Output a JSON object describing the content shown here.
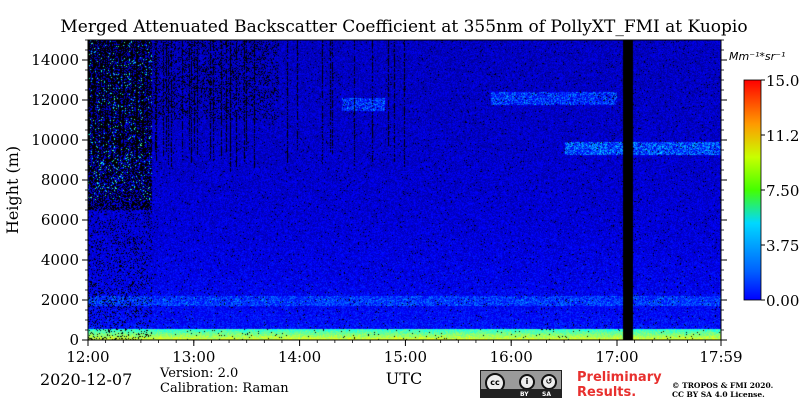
{
  "chart_data": {
    "type": "heatmap",
    "title": "Merged Attenuated Backscatter Coefficient at 355nm of PollyXT_FMI at Kuopio",
    "ylabel": "Height (m)",
    "xlabel": "UTC",
    "x_tick_labels": [
      "12:00",
      "13:00",
      "14:00",
      "15:00",
      "16:00",
      "17:00",
      "17:59"
    ],
    "x_tick_hours": [
      12.0,
      13.0,
      14.0,
      15.0,
      16.0,
      17.0,
      17.983
    ],
    "xlim": [
      12.0,
      17.983
    ],
    "y_ticks": [
      0,
      2000,
      4000,
      6000,
      8000,
      10000,
      12000,
      14000
    ],
    "ylim": [
      0,
      15000
    ],
    "colorbar": {
      "unit": "Mm⁻¹*sr⁻¹",
      "range": [
        0.0,
        15.0
      ],
      "tick_labels": [
        "0.00",
        "3.75",
        "7.50",
        "11.25",
        "15.00"
      ],
      "tick_values": [
        0.0,
        3.75,
        7.5,
        11.25,
        15.0
      ],
      "colormap": "jet"
    },
    "features": [
      {
        "kind": "no-data",
        "x_start": 17.05,
        "x_end": 17.15
      },
      {
        "kind": "boundary-layer",
        "height_top": 600,
        "value": 7.5
      },
      {
        "kind": "aerosol-layer",
        "height_bottom": 1700,
        "height_top": 2200,
        "value": 4.0
      },
      {
        "kind": "cloud",
        "x_start": 14.4,
        "x_end": 14.8,
        "height": 11800,
        "value": 5.0
      },
      {
        "kind": "cloud",
        "x_start": 15.8,
        "x_end": 17.0,
        "height": 12100,
        "value": 5.0
      },
      {
        "kind": "cloud",
        "x_start": 16.5,
        "x_end": 17.98,
        "height": 9600,
        "value": 6.0
      }
    ]
  },
  "footer": {
    "date": "2020-12-07",
    "version": "Version: 2.0",
    "calibration": "Calibration: Raman",
    "preliminary_line1": "Preliminary",
    "preliminary_line2": "Results.",
    "copyright_line1": "© TROPOS & FMI 2020.",
    "copyright_line2": "CC BY SA 4.0 License.",
    "license_badge": {
      "symbols": [
        "cc",
        "by",
        "sa"
      ],
      "labels": [
        "BY",
        "SA"
      ]
    }
  },
  "colors": {
    "accent_red": "#e8302e",
    "background": "#ffffff",
    "no_data": "#000000"
  }
}
